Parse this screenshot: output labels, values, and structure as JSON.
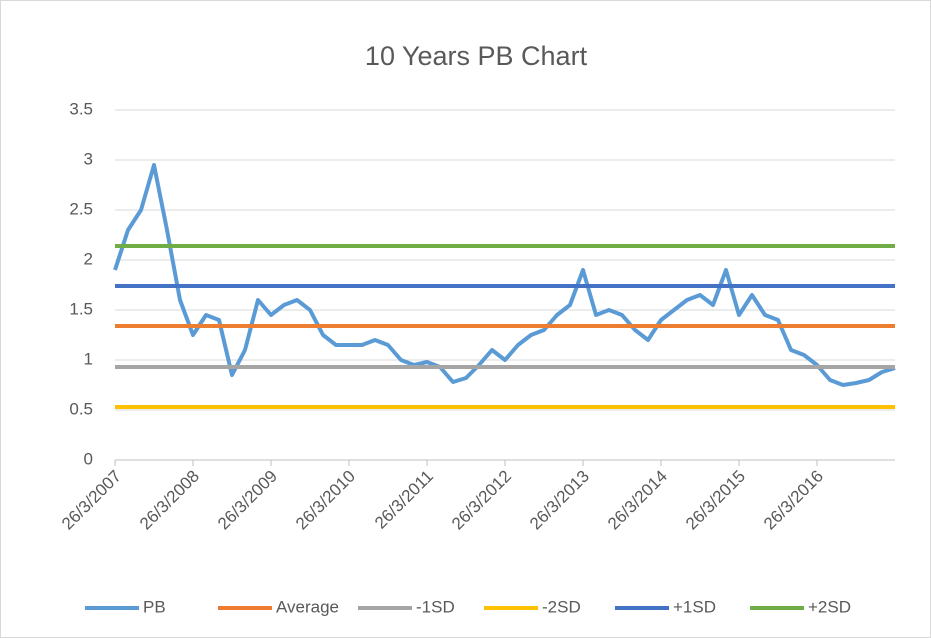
{
  "chart_data": {
    "type": "line",
    "title": "10 Years PB Chart",
    "categories": [
      "26/3/2007",
      null,
      null,
      null,
      null,
      null,
      "26/3/2008",
      null,
      null,
      null,
      null,
      null,
      "26/3/2009",
      null,
      null,
      null,
      null,
      null,
      "26/3/2010",
      null,
      null,
      null,
      null,
      null,
      "26/3/2011",
      null,
      null,
      null,
      null,
      null,
      "26/3/2012",
      null,
      null,
      null,
      null,
      null,
      "26/3/2013",
      null,
      null,
      null,
      null,
      null,
      "26/3/2014",
      null,
      null,
      null,
      null,
      null,
      "26/3/2015",
      null,
      null,
      null,
      null,
      null,
      "26/3/2016",
      null,
      null,
      null,
      null,
      null,
      null
    ],
    "series": [
      {
        "name": "PB",
        "color": "#5b9bd5",
        "values": [
          1.9,
          2.3,
          2.5,
          2.95,
          2.3,
          1.6,
          1.25,
          1.45,
          1.4,
          0.85,
          1.1,
          1.6,
          1.45,
          1.55,
          1.6,
          1.5,
          1.25,
          1.15,
          1.15,
          1.15,
          1.2,
          1.15,
          1.0,
          0.95,
          0.98,
          0.93,
          0.78,
          0.82,
          0.95,
          1.1,
          1.0,
          1.15,
          1.25,
          1.3,
          1.45,
          1.55,
          1.9,
          1.45,
          1.5,
          1.45,
          1.3,
          1.2,
          1.4,
          1.5,
          1.6,
          1.65,
          1.55,
          1.9,
          1.45,
          1.65,
          1.45,
          1.4,
          1.1,
          1.05,
          0.95,
          0.8,
          0.75,
          0.77,
          0.8,
          0.88,
          0.92
        ]
      },
      {
        "name": "Average",
        "color": "#ed7d31",
        "values": [
          1.34,
          1.34,
          1.34,
          1.34,
          1.34,
          1.34,
          1.34,
          1.34,
          1.34,
          1.34,
          1.34,
          1.34,
          1.34,
          1.34,
          1.34,
          1.34,
          1.34,
          1.34,
          1.34,
          1.34,
          1.34,
          1.34,
          1.34,
          1.34,
          1.34,
          1.34,
          1.34,
          1.34,
          1.34,
          1.34,
          1.34,
          1.34,
          1.34,
          1.34,
          1.34,
          1.34,
          1.34,
          1.34,
          1.34,
          1.34,
          1.34,
          1.34,
          1.34,
          1.34,
          1.34,
          1.34,
          1.34,
          1.34,
          1.34,
          1.34,
          1.34,
          1.34,
          1.34,
          1.34,
          1.34,
          1.34,
          1.34,
          1.34,
          1.34,
          1.34,
          1.34
        ]
      },
      {
        "name": "-1SD",
        "color": "#a5a5a5",
        "values": [
          0.93,
          0.93,
          0.93,
          0.93,
          0.93,
          0.93,
          0.93,
          0.93,
          0.93,
          0.93,
          0.93,
          0.93,
          0.93,
          0.93,
          0.93,
          0.93,
          0.93,
          0.93,
          0.93,
          0.93,
          0.93,
          0.93,
          0.93,
          0.93,
          0.93,
          0.93,
          0.93,
          0.93,
          0.93,
          0.93,
          0.93,
          0.93,
          0.93,
          0.93,
          0.93,
          0.93,
          0.93,
          0.93,
          0.93,
          0.93,
          0.93,
          0.93,
          0.93,
          0.93,
          0.93,
          0.93,
          0.93,
          0.93,
          0.93,
          0.93,
          0.93,
          0.93,
          0.93,
          0.93,
          0.93,
          0.93,
          0.93,
          0.93,
          0.93,
          0.93,
          0.93
        ]
      },
      {
        "name": "-2SD",
        "color": "#ffc000",
        "values": [
          0.53,
          0.53,
          0.53,
          0.53,
          0.53,
          0.53,
          0.53,
          0.53,
          0.53,
          0.53,
          0.53,
          0.53,
          0.53,
          0.53,
          0.53,
          0.53,
          0.53,
          0.53,
          0.53,
          0.53,
          0.53,
          0.53,
          0.53,
          0.53,
          0.53,
          0.53,
          0.53,
          0.53,
          0.53,
          0.53,
          0.53,
          0.53,
          0.53,
          0.53,
          0.53,
          0.53,
          0.53,
          0.53,
          0.53,
          0.53,
          0.53,
          0.53,
          0.53,
          0.53,
          0.53,
          0.53,
          0.53,
          0.53,
          0.53,
          0.53,
          0.53,
          0.53,
          0.53,
          0.53,
          0.53,
          0.53,
          0.53,
          0.53,
          0.53,
          0.53,
          0.53
        ]
      },
      {
        "name": "+1SD",
        "color": "#4472c4",
        "values": [
          1.74,
          1.74,
          1.74,
          1.74,
          1.74,
          1.74,
          1.74,
          1.74,
          1.74,
          1.74,
          1.74,
          1.74,
          1.74,
          1.74,
          1.74,
          1.74,
          1.74,
          1.74,
          1.74,
          1.74,
          1.74,
          1.74,
          1.74,
          1.74,
          1.74,
          1.74,
          1.74,
          1.74,
          1.74,
          1.74,
          1.74,
          1.74,
          1.74,
          1.74,
          1.74,
          1.74,
          1.74,
          1.74,
          1.74,
          1.74,
          1.74,
          1.74,
          1.74,
          1.74,
          1.74,
          1.74,
          1.74,
          1.74,
          1.74,
          1.74,
          1.74,
          1.74,
          1.74,
          1.74,
          1.74,
          1.74,
          1.74,
          1.74,
          1.74,
          1.74,
          1.74
        ]
      },
      {
        "name": "+2SD",
        "color": "#70ad47",
        "values": [
          2.14,
          2.14,
          2.14,
          2.14,
          2.14,
          2.14,
          2.14,
          2.14,
          2.14,
          2.14,
          2.14,
          2.14,
          2.14,
          2.14,
          2.14,
          2.14,
          2.14,
          2.14,
          2.14,
          2.14,
          2.14,
          2.14,
          2.14,
          2.14,
          2.14,
          2.14,
          2.14,
          2.14,
          2.14,
          2.14,
          2.14,
          2.14,
          2.14,
          2.14,
          2.14,
          2.14,
          2.14,
          2.14,
          2.14,
          2.14,
          2.14,
          2.14,
          2.14,
          2.14,
          2.14,
          2.14,
          2.14,
          2.14,
          2.14,
          2.14,
          2.14,
          2.14,
          2.14,
          2.14,
          2.14,
          2.14,
          2.14,
          2.14,
          2.14,
          2.14,
          2.14
        ]
      }
    ],
    "ylim": [
      0,
      3.5
    ],
    "yticks": [
      0,
      0.5,
      1,
      1.5,
      2,
      2.5,
      3,
      3.5
    ],
    "grid": true,
    "legend": "bottom"
  }
}
